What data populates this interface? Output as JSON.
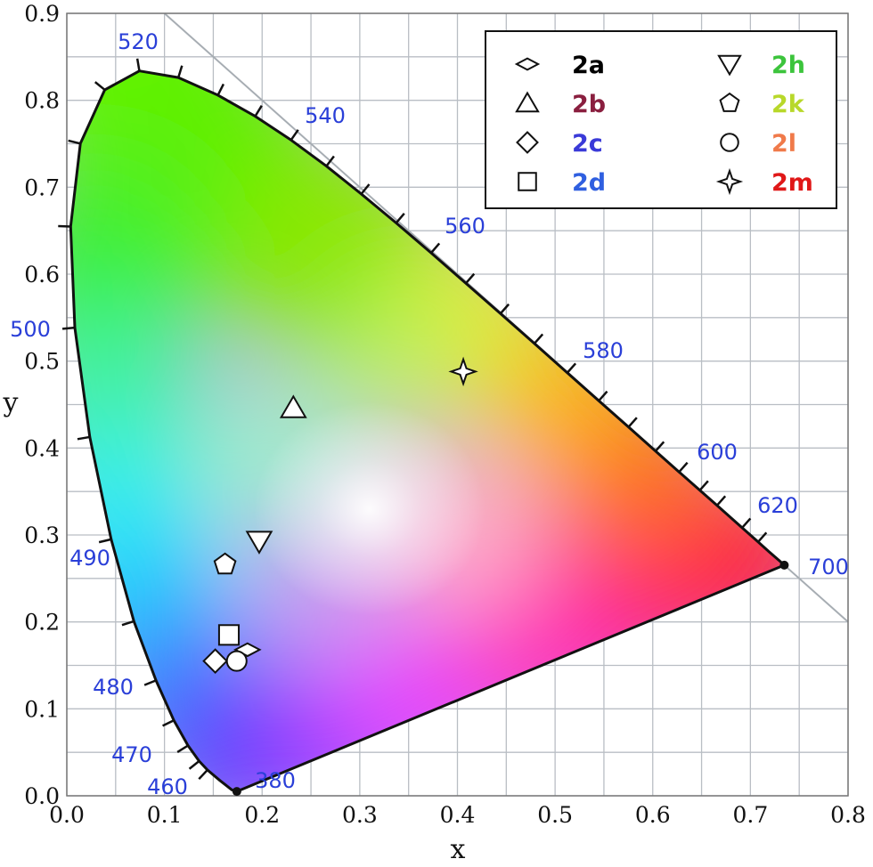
{
  "chart_data": {
    "type": "scatter",
    "xlabel": "x",
    "ylabel": "y",
    "xlim": [
      0.0,
      0.8
    ],
    "ylim": [
      0.0,
      0.9
    ],
    "x_ticks": [
      "0.0",
      "0.1",
      "0.2",
      "0.3",
      "0.4",
      "0.5",
      "0.6",
      "0.7",
      "0.8"
    ],
    "y_ticks": [
      "0.0",
      "0.1",
      "0.2",
      "0.3",
      "0.4",
      "0.5",
      "0.6",
      "0.7",
      "0.8",
      "0.9"
    ],
    "grid": true,
    "background": "CIE 1931 chromaticity diagram",
    "legend_position": "top-right",
    "spectral_locus": [
      {
        "nm": 380,
        "x": 0.1741,
        "y": 0.005
      },
      {
        "nm": 430,
        "x": 0.1689,
        "y": 0.0069
      },
      {
        "nm": 450,
        "x": 0.1566,
        "y": 0.0177
      },
      {
        "nm": 460,
        "x": 0.144,
        "y": 0.0297
      },
      {
        "nm": 465,
        "x": 0.1355,
        "y": 0.0399
      },
      {
        "nm": 470,
        "x": 0.1241,
        "y": 0.0578
      },
      {
        "nm": 475,
        "x": 0.1096,
        "y": 0.0868
      },
      {
        "nm": 480,
        "x": 0.0913,
        "y": 0.1327
      },
      {
        "nm": 485,
        "x": 0.0687,
        "y": 0.2007
      },
      {
        "nm": 490,
        "x": 0.0454,
        "y": 0.295
      },
      {
        "nm": 495,
        "x": 0.0235,
        "y": 0.4127
      },
      {
        "nm": 500,
        "x": 0.0082,
        "y": 0.5384
      },
      {
        "nm": 505,
        "x": 0.0039,
        "y": 0.6548
      },
      {
        "nm": 510,
        "x": 0.0139,
        "y": 0.7502
      },
      {
        "nm": 515,
        "x": 0.0389,
        "y": 0.812
      },
      {
        "nm": 520,
        "x": 0.0743,
        "y": 0.8338
      },
      {
        "nm": 525,
        "x": 0.1142,
        "y": 0.8262
      },
      {
        "nm": 530,
        "x": 0.1547,
        "y": 0.8059
      },
      {
        "nm": 535,
        "x": 0.1929,
        "y": 0.7816
      },
      {
        "nm": 540,
        "x": 0.2296,
        "y": 0.7543
      },
      {
        "nm": 545,
        "x": 0.2658,
        "y": 0.7243
      },
      {
        "nm": 550,
        "x": 0.3016,
        "y": 0.6923
      },
      {
        "nm": 555,
        "x": 0.3373,
        "y": 0.6589
      },
      {
        "nm": 560,
        "x": 0.3731,
        "y": 0.6245
      },
      {
        "nm": 565,
        "x": 0.4087,
        "y": 0.5896
      },
      {
        "nm": 570,
        "x": 0.4441,
        "y": 0.5547
      },
      {
        "nm": 575,
        "x": 0.4788,
        "y": 0.5202
      },
      {
        "nm": 580,
        "x": 0.5125,
        "y": 0.4866
      },
      {
        "nm": 585,
        "x": 0.5448,
        "y": 0.4544
      },
      {
        "nm": 590,
        "x": 0.5752,
        "y": 0.4242
      },
      {
        "nm": 595,
        "x": 0.6029,
        "y": 0.3965
      },
      {
        "nm": 600,
        "x": 0.627,
        "y": 0.3725
      },
      {
        "nm": 605,
        "x": 0.6482,
        "y": 0.3514
      },
      {
        "nm": 610,
        "x": 0.6658,
        "y": 0.334
      },
      {
        "nm": 620,
        "x": 0.6915,
        "y": 0.3083
      },
      {
        "nm": 630,
        "x": 0.7079,
        "y": 0.292
      },
      {
        "nm": 640,
        "x": 0.719,
        "y": 0.2809
      },
      {
        "nm": 660,
        "x": 0.73,
        "y": 0.27
      },
      {
        "nm": 700,
        "x": 0.7347,
        "y": 0.2653
      }
    ],
    "wavelength_labels": [
      {
        "text": "520",
        "nm": 520
      },
      {
        "text": "540",
        "nm": 540
      },
      {
        "text": "560",
        "nm": 560
      },
      {
        "text": "580",
        "nm": 580
      },
      {
        "text": "600",
        "nm": 600
      },
      {
        "text": "620",
        "nm": 620
      },
      {
        "text": "700",
        "nm": 700
      },
      {
        "text": "500",
        "nm": 500
      },
      {
        "text": "490",
        "nm": 490
      },
      {
        "text": "480",
        "nm": 480
      },
      {
        "text": "470",
        "nm": 470
      },
      {
        "text": "460",
        "nm": 460
      },
      {
        "text": "380",
        "nm": 380
      }
    ],
    "series": [
      {
        "name": "2a",
        "marker": "flat-diamond",
        "color": "#000000",
        "x": 0.185,
        "y": 0.168
      },
      {
        "name": "2b",
        "marker": "triangle-up",
        "color": "#8a1f3f",
        "x": 0.232,
        "y": 0.446
      },
      {
        "name": "2c",
        "marker": "diamond",
        "color": "#3a3ad8",
        "x": 0.152,
        "y": 0.155
      },
      {
        "name": "2d",
        "marker": "square",
        "color": "#2f5fe0",
        "x": 0.166,
        "y": 0.185
      },
      {
        "name": "2h",
        "marker": "triangle-down",
        "color": "#3cc43c",
        "x": 0.197,
        "y": 0.293
      },
      {
        "name": "2k",
        "marker": "pentagon",
        "color": "#b8d82a",
        "x": 0.162,
        "y": 0.266
      },
      {
        "name": "2l",
        "marker": "circle",
        "color": "#f07a4a",
        "x": 0.174,
        "y": 0.155
      },
      {
        "name": "2m",
        "marker": "star4",
        "color": "#e01818",
        "x": 0.406,
        "y": 0.488
      }
    ]
  }
}
